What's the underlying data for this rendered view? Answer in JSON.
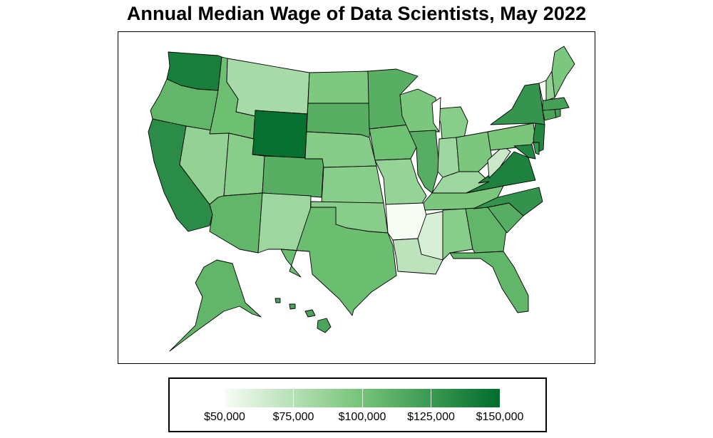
{
  "title": "Annual Median Wage of Data Scientists, May 2022",
  "colors": {
    "scale_low": "#f7fcf5",
    "scale_mid": "#74c476",
    "scale_high": "#006d2c",
    "border": "#000000",
    "background": "#ffffff"
  },
  "legend": {
    "min": 50000,
    "max": 150000,
    "tick_labels": [
      "$50,000",
      "$75,000",
      "$100,000",
      "$125,000",
      "$150,000"
    ],
    "tick_values": [
      50000,
      75000,
      100000,
      125000,
      150000
    ]
  },
  "states": {
    "WA": 140000,
    "OR": 108000,
    "CA": 132000,
    "NV": 88000,
    "ID": 103000,
    "MT": 80000,
    "WY": 148000,
    "UT": 92000,
    "CO": 112000,
    "AZ": 108000,
    "NM": 84000,
    "ND": 96000,
    "SD": 112000,
    "NE": 93000,
    "KS": 92000,
    "OK": 92000,
    "TX": 104000,
    "MN": 112000,
    "IA": 102000,
    "MO": 87000,
    "AR": 50000,
    "LA": 72000,
    "WI": 97000,
    "IL": 113000,
    "MI": 92000,
    "IN": 84000,
    "OH": 97000,
    "KY": 84000,
    "TN": 97000,
    "MS": 62000,
    "AL": 92000,
    "GA": 108000,
    "FL": 108000,
    "SC": 113000,
    "NC": 128000,
    "VA": 138000,
    "WV": 68000,
    "PA": 98000,
    "NY": 127000,
    "NJ": 135000,
    "DE": 125000,
    "MD": 135000,
    "CT": 118000,
    "RI": 120000,
    "MA": 120000,
    "VT": 50000,
    "NH": 88000,
    "ME": 97000,
    "AK": 108000,
    "HI": 118000
  }
}
